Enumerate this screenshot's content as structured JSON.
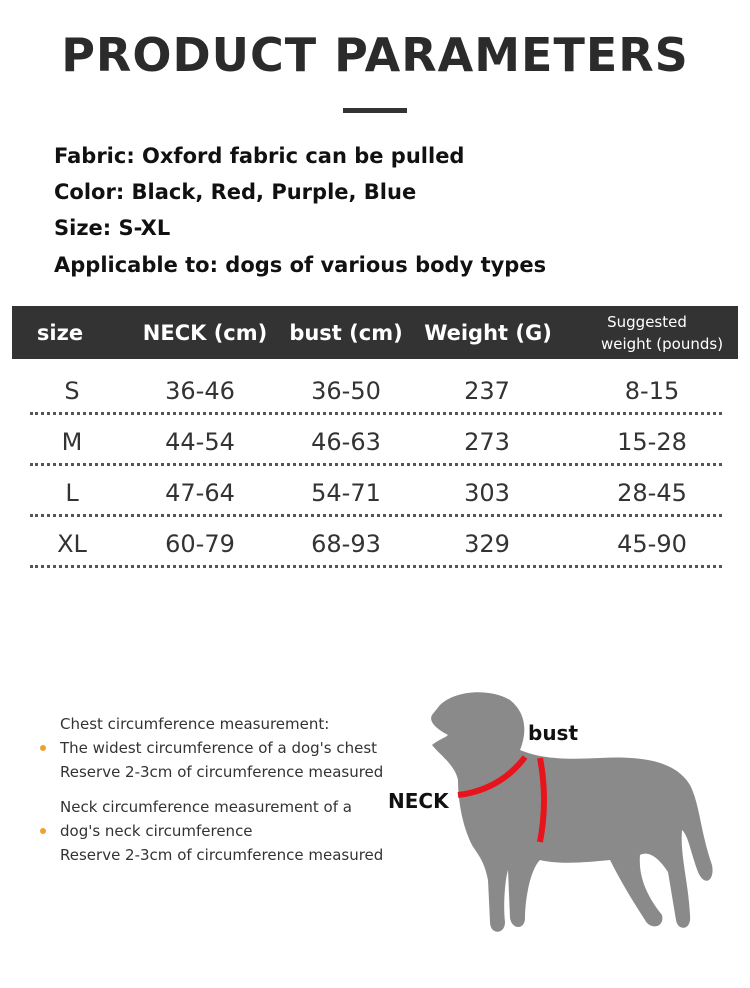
{
  "title": "PRODUCT PARAMETERS",
  "specs": [
    "Fabric: Oxford fabric can be pulled",
    "Color: Black, Red, Purple, Blue",
    "Size: S-XL",
    "Applicable to: dogs of various body types"
  ],
  "table": {
    "headers": [
      "size",
      "NECK (cm)",
      "bust (cm)",
      "Weight (G)"
    ],
    "header_last": [
      "Suggested",
      "weight (pounds)"
    ],
    "rows": [
      [
        "S",
        "36-46",
        "36-50",
        "237",
        "8-15"
      ],
      [
        "M",
        "44-54",
        "46-63",
        "273",
        "15-28"
      ],
      [
        "L",
        "47-64",
        "54-71",
        "303",
        "28-45"
      ],
      [
        "XL",
        "60-79",
        "68-93",
        "329",
        "45-90"
      ]
    ]
  },
  "notes": {
    "chest": [
      "Chest circumference measurement:",
      "The widest circumference of a dog's chest",
      "Reserve 2-3cm of circumference measured"
    ],
    "neck": [
      "Neck circumference measurement of a",
      "dog's neck circumference",
      "Reserve 2-3cm of circumference measured"
    ]
  },
  "diagram": {
    "bust_label": "bust",
    "neck_label": "NECK",
    "dog_color": "#8a8a8a",
    "strap_color": "#e8141c"
  },
  "colors": {
    "header_bg": "#333333",
    "bullet": "#f0a030"
  }
}
